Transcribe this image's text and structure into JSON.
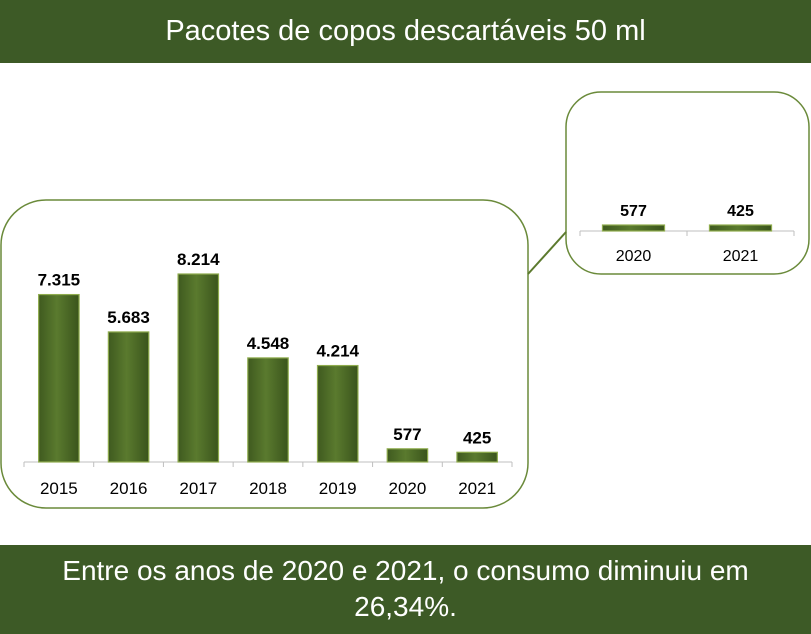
{
  "header": {
    "title": "Pacotes de copos descartáveis 50 ml"
  },
  "footer": {
    "text": "Entre os anos de 2020 e 2021, o consumo diminuiu em 26,34%."
  },
  "colors": {
    "banner": "#3d5a26",
    "bar": "#4f6b27",
    "bar_light": "#8fac4e",
    "frame": "#5c7a2e"
  },
  "chart_data": [
    {
      "type": "bar",
      "title": "",
      "categories": [
        "2015",
        "2016",
        "2017",
        "2018",
        "2019",
        "2020",
        "2021"
      ],
      "values": [
        7315,
        5683,
        8214,
        4548,
        4214,
        577,
        425
      ],
      "labels": [
        "7.315",
        "5.683",
        "8.214",
        "4.548",
        "4.214",
        "577",
        "425"
      ],
      "ylim": [
        0,
        9000
      ],
      "xlabel": "",
      "ylabel": ""
    },
    {
      "type": "bar",
      "title": "",
      "categories": [
        "2020",
        "2021"
      ],
      "values": [
        577,
        425
      ],
      "labels": [
        "577",
        "425"
      ],
      "ylim": [
        0,
        9000
      ],
      "xlabel": "",
      "ylabel": ""
    }
  ]
}
